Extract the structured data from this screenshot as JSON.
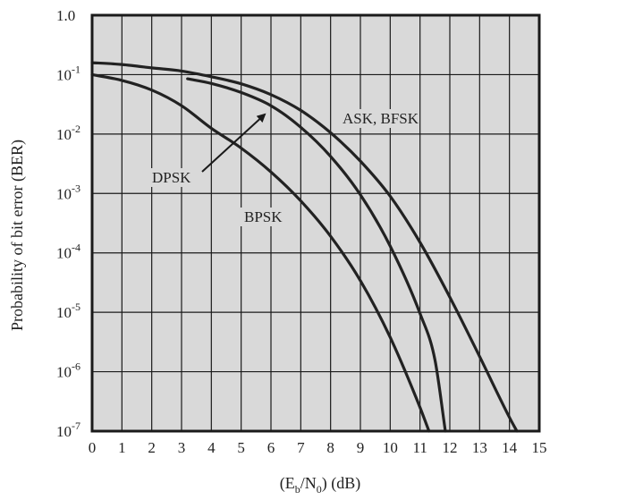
{
  "chart_data": {
    "type": "line",
    "xlabel_parts": [
      "(E",
      "b",
      "/N",
      "0",
      ") (dB)"
    ],
    "ylabel": "Probability of bit error (BER)",
    "xlim": [
      0,
      15
    ],
    "ylim": [
      1e-07,
      1
    ],
    "y_scale": "log",
    "grid": true,
    "plot_background": "#d9d9d9",
    "line_color": "#222222",
    "x_ticks": [
      "0",
      "1",
      "2",
      "3",
      "4",
      "5",
      "6",
      "7",
      "8",
      "9",
      "10",
      "11",
      "12",
      "13",
      "14",
      "15"
    ],
    "y_ticks": [
      {
        "value": 1,
        "base": "1.0",
        "exp": ""
      },
      {
        "value": 0.1,
        "base": "10",
        "exp": "-1"
      },
      {
        "value": 0.01,
        "base": "10",
        "exp": "-2"
      },
      {
        "value": 0.001,
        "base": "10",
        "exp": "-3"
      },
      {
        "value": 0.0001,
        "base": "10",
        "exp": "-4"
      },
      {
        "value": 1e-05,
        "base": "10",
        "exp": "-5"
      },
      {
        "value": 1e-06,
        "base": "10",
        "exp": "-6"
      },
      {
        "value": 1e-07,
        "base": "10",
        "exp": "-7"
      }
    ],
    "series": [
      {
        "name": "ASK, BFSK",
        "x": [
          0,
          1,
          2,
          3,
          4,
          5,
          6,
          7,
          8,
          9,
          10,
          11,
          12,
          13,
          14,
          14.25
        ],
        "y": [
          0.159,
          0.148,
          0.13,
          0.115,
          0.092,
          0.07,
          0.046,
          0.025,
          0.0105,
          0.0035,
          0.0009,
          0.00015,
          1.8e-05,
          1.8e-06,
          1.7e-07,
          1e-07
        ]
      },
      {
        "name": "DPSK",
        "x": [
          3.2,
          4,
          5,
          6,
          7,
          8,
          9,
          10,
          11,
          11.5,
          11.85
        ],
        "y": [
          0.085,
          0.071,
          0.05,
          0.03,
          0.013,
          0.0042,
          0.00095,
          0.00013,
          9.5e-06,
          1.6e-06,
          1e-07
        ]
      },
      {
        "name": "BPSK",
        "x": [
          0,
          1,
          2,
          3,
          4,
          5,
          6,
          7,
          8,
          9,
          10,
          11,
          11.3
        ],
        "y": [
          0.1,
          0.08,
          0.055,
          0.03,
          0.0125,
          0.0058,
          0.0023,
          0.00075,
          0.00019,
          3.4e-05,
          3.8e-06,
          2.5e-07,
          1e-07
        ]
      }
    ],
    "labels": [
      {
        "series": "ASK, BFSK",
        "text": "ASK, BFSK"
      },
      {
        "series": "DPSK",
        "text": "DPSK"
      },
      {
        "series": "BPSK",
        "text": "BPSK"
      }
    ]
  }
}
